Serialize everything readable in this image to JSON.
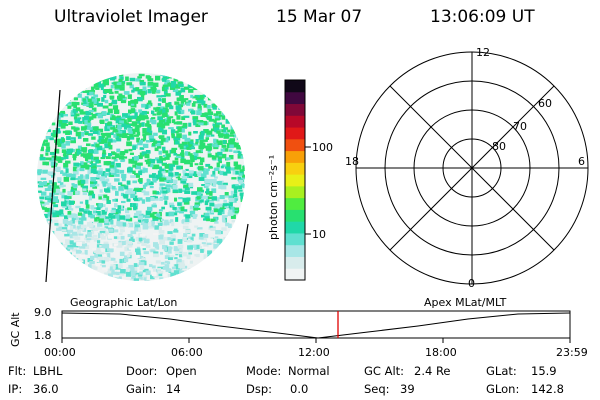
{
  "header": {
    "instrument": "Ultraviolet Imager",
    "date": "15 Mar 07",
    "time": "13:06:09 UT"
  },
  "colorbar": {
    "unit_label": "photon cm⁻²s⁻¹",
    "ticks": [
      "100",
      "10"
    ],
    "colors": [
      "#f0f4f4",
      "#d8ecec",
      "#a8e6e6",
      "#60e0d0",
      "#20d8a8",
      "#28e070",
      "#50ec40",
      "#a8f020",
      "#e8f018",
      "#f8d010",
      "#f8a008",
      "#f05010",
      "#e01818",
      "#b80828",
      "#800838",
      "#400840",
      "#100818"
    ]
  },
  "polar_plot": {
    "mlt_labels": [
      "12",
      "18",
      "6",
      "0"
    ],
    "lat_labels": [
      "60",
      "70",
      "80"
    ]
  },
  "timeline": {
    "left_title": "Geographic Lat/Lon",
    "right_title": "Apex MLat/MLT",
    "ylabel": "GC Alt",
    "y_ticks": [
      "9.0",
      "1.8"
    ],
    "x_ticks": [
      "00:00",
      "06:00",
      "12:00",
      "18:00",
      "23:59"
    ]
  },
  "footer": {
    "row1": [
      {
        "label": "Flt:",
        "value": "LBHL"
      },
      {
        "label": "Door:",
        "value": "Open"
      },
      {
        "label": "Mode:",
        "value": "Normal"
      },
      {
        "label": "GC Alt:",
        "value": "2.4 Re"
      },
      {
        "label": "GLat:",
        "value": "15.9"
      }
    ],
    "row2": [
      {
        "label": "IP:",
        "value": "36.0"
      },
      {
        "label": "Gain:",
        "value": "14"
      },
      {
        "label": "Dsp:",
        "value": "0.0"
      },
      {
        "label": "Seq:",
        "value": "39"
      },
      {
        "label": "GLon:",
        "value": "142.8"
      }
    ]
  }
}
